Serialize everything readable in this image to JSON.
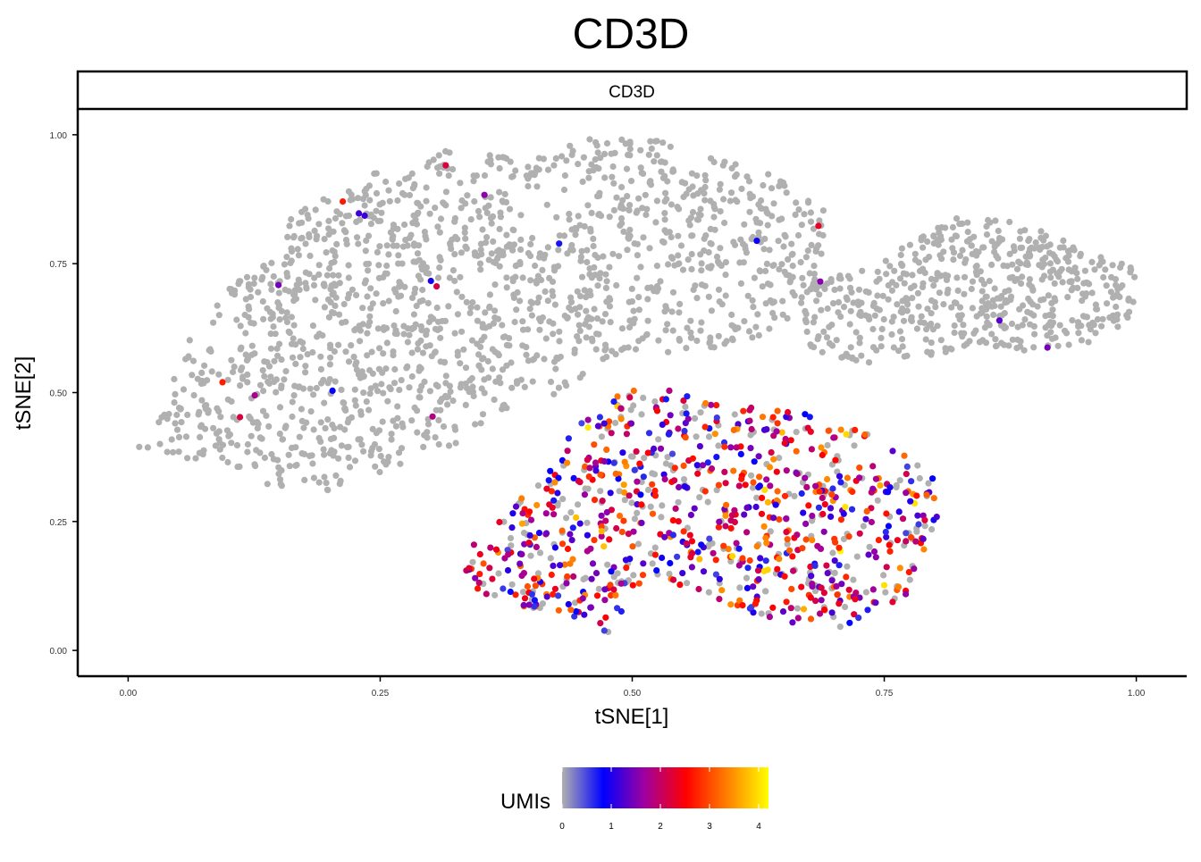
{
  "chart_data": {
    "type": "scatter",
    "title": "CD3D",
    "facet_label": "CD3D",
    "xlabel": "tSNE[1]",
    "ylabel": "tSNE[2]",
    "xlim": [
      -0.05,
      1.05
    ],
    "ylim": [
      -0.05,
      1.05
    ],
    "x_ticks": [
      0.0,
      0.25,
      0.5,
      0.75,
      1.0
    ],
    "x_tick_labels": [
      "0.00",
      "0.25",
      "0.50",
      "0.75",
      "1.00"
    ],
    "y_ticks": [
      0.0,
      0.25,
      0.5,
      0.75,
      1.0
    ],
    "y_tick_labels": [
      "0.00",
      "0.25",
      "0.50",
      "0.75",
      "1.00"
    ],
    "grid": false,
    "legend": {
      "title": "UMIs",
      "position": "bottom",
      "ticks": [
        0,
        1,
        2,
        3,
        4
      ],
      "tick_labels": [
        "0",
        "1",
        "2",
        "3",
        "4"
      ],
      "range": [
        0,
        4.2
      ],
      "colors": [
        "#B0B0B0",
        "#0000FF",
        "#A000A0",
        "#FF0000",
        "#FF8000",
        "#FFFF00"
      ]
    },
    "clusters": [
      {
        "shape": [
          [
            0.0,
            0.4
          ],
          [
            0.02,
            0.42
          ],
          [
            0.04,
            0.52
          ],
          [
            0.06,
            0.6
          ],
          [
            0.09,
            0.68
          ],
          [
            0.13,
            0.76
          ],
          [
            0.17,
            0.86
          ],
          [
            0.22,
            0.9
          ],
          [
            0.27,
            0.96
          ],
          [
            0.32,
            0.97
          ],
          [
            0.4,
            0.95
          ],
          [
            0.45,
            0.99
          ],
          [
            0.51,
            1.0
          ],
          [
            0.58,
            0.96
          ],
          [
            0.64,
            0.92
          ],
          [
            0.69,
            0.86
          ],
          [
            0.69,
            0.75
          ],
          [
            0.67,
            0.66
          ],
          [
            0.62,
            0.6
          ],
          [
            0.57,
            0.57
          ],
          [
            0.52,
            0.58
          ],
          [
            0.47,
            0.55
          ],
          [
            0.43,
            0.5
          ],
          [
            0.38,
            0.47
          ],
          [
            0.32,
            0.39
          ],
          [
            0.26,
            0.35
          ],
          [
            0.2,
            0.31
          ],
          [
            0.15,
            0.31
          ],
          [
            0.09,
            0.37
          ],
          [
            0.04,
            0.37
          ]
        ],
        "n": 1600,
        "umi": "none"
      },
      {
        "shape": [
          [
            0.68,
            0.72
          ],
          [
            0.74,
            0.74
          ],
          [
            0.78,
            0.8
          ],
          [
            0.82,
            0.84
          ],
          [
            0.87,
            0.84
          ],
          [
            0.91,
            0.81
          ],
          [
            0.96,
            0.77
          ],
          [
            1.0,
            0.74
          ],
          [
            1.0,
            0.65
          ],
          [
            0.96,
            0.6
          ],
          [
            0.9,
            0.58
          ],
          [
            0.84,
            0.59
          ],
          [
            0.79,
            0.57
          ],
          [
            0.73,
            0.55
          ],
          [
            0.68,
            0.58
          ],
          [
            0.66,
            0.65
          ]
        ],
        "n": 560,
        "umi": "none"
      },
      {
        "shape": [
          [
            0.35,
            0.23
          ],
          [
            0.38,
            0.27
          ],
          [
            0.42,
            0.37
          ],
          [
            0.46,
            0.47
          ],
          [
            0.5,
            0.51
          ],
          [
            0.56,
            0.5
          ],
          [
            0.62,
            0.47
          ],
          [
            0.68,
            0.46
          ],
          [
            0.74,
            0.42
          ],
          [
            0.79,
            0.35
          ],
          [
            0.81,
            0.31
          ],
          [
            0.8,
            0.22
          ],
          [
            0.78,
            0.12
          ],
          [
            0.75,
            0.08
          ],
          [
            0.7,
            0.04
          ],
          [
            0.64,
            0.06
          ],
          [
            0.58,
            0.1
          ],
          [
            0.54,
            0.12
          ],
          [
            0.51,
            0.14
          ],
          [
            0.48,
            0.03
          ],
          [
            0.45,
            0.06
          ],
          [
            0.4,
            0.08
          ],
          [
            0.36,
            0.1
          ],
          [
            0.33,
            0.14
          ],
          [
            0.33,
            0.2
          ]
        ],
        "n": 900,
        "umi": "high"
      }
    ]
  }
}
